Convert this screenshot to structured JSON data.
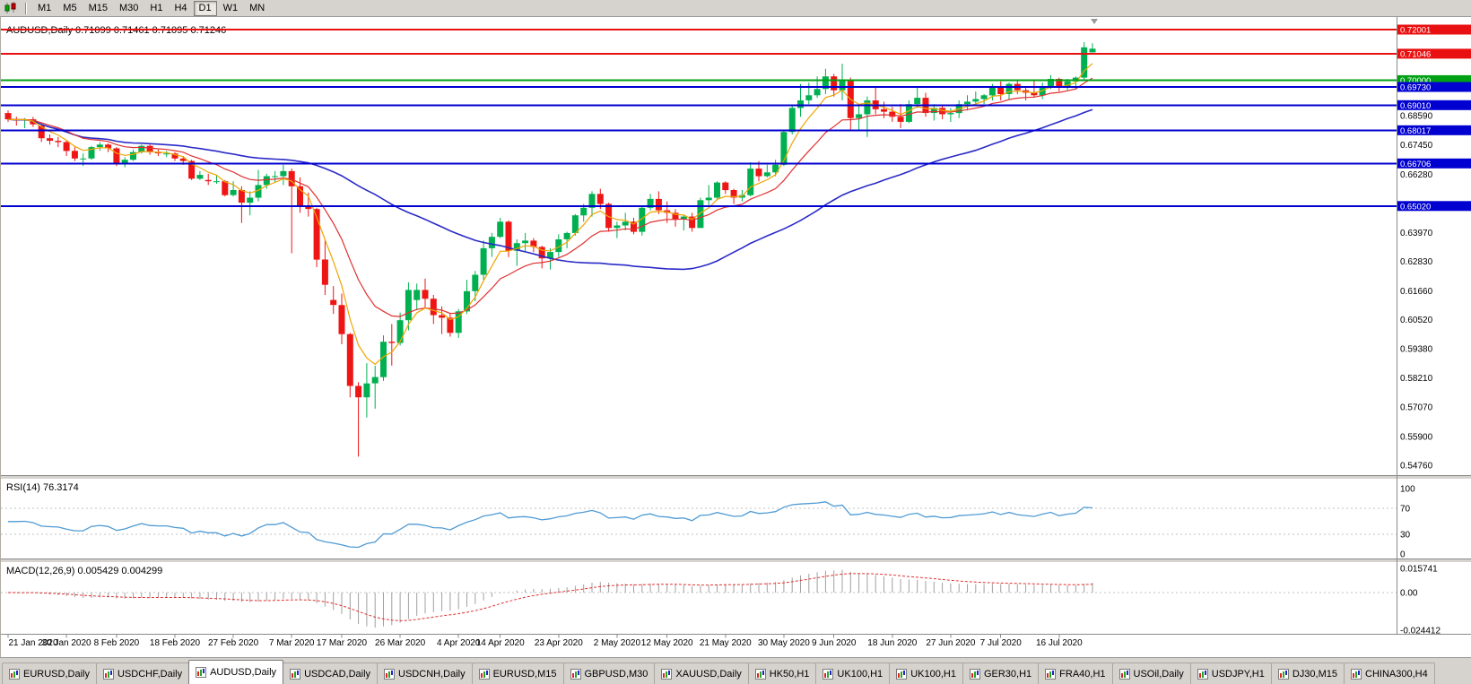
{
  "window": {
    "symbol_period": "AUDUSD,Daily",
    "ohlc_text": "0.71099 0.71461 0.71095 0.71246"
  },
  "toolbar": {
    "timeframes": [
      "M1",
      "M5",
      "M15",
      "M30",
      "H1",
      "H4",
      "D1",
      "W1",
      "MN"
    ],
    "active": "D1"
  },
  "tabs": {
    "active_index": 2,
    "items": [
      "EURUSD,Daily",
      "USDCHF,Daily",
      "AUDUSD,Daily",
      "USDCAD,Daily",
      "USDCNH,Daily",
      "EURUSD,M15",
      "GBPUSD,M30",
      "XAUUSD,Daily",
      "HK50,H1",
      "UK100,H1",
      "UK100,H1",
      "GER30,H1",
      "FRA40,H1",
      "USOil,Daily",
      "USDJPY,H1",
      "DJ30,M15",
      "CHINA300,H4"
    ]
  },
  "colors": {
    "candle_up": "#00B050",
    "candle_down": "#EE1515",
    "ma_fast": "#EEA500",
    "ma_medium": "#E03030",
    "ma_slow": "#2A2AC8",
    "hline_red": "#E81010",
    "hline_green": "#00A015",
    "hline_blue": "#0000D0",
    "rsi_line": "#4F9BD5",
    "macd_histogram": "#A0A0A0",
    "macd_signal": "#E03030"
  },
  "chart_data": {
    "type": "candlestick",
    "title": "AUDUSD,Daily",
    "ohlc_latest": {
      "open": 0.71099,
      "high": 0.71461,
      "low": 0.71095,
      "close": 0.71246
    },
    "ylim": [
      0.5476,
      0.72001
    ],
    "y_axis_labels": [
      "0.68590",
      "0.67450",
      "0.66280",
      "0.63970",
      "0.62830",
      "0.61660",
      "0.60520",
      "0.59380",
      "0.58210",
      "0.57070",
      "0.55900",
      "0.54760"
    ],
    "horizontal_lines": [
      {
        "value": 0.72001,
        "label": "0.72001",
        "color": "red"
      },
      {
        "value": 0.71046,
        "label": "0.71046",
        "color": "red"
      },
      {
        "value": 0.7,
        "label": "0.70000",
        "color": "green"
      },
      {
        "value": 0.6973,
        "label": "0.69730",
        "color": "blue"
      },
      {
        "value": 0.6901,
        "label": "0.69010",
        "color": "blue"
      },
      {
        "value": 0.68017,
        "label": "0.68017",
        "color": "blue"
      },
      {
        "value": 0.66706,
        "label": "0.66706",
        "color": "blue"
      },
      {
        "value": 0.6502,
        "label": "0.65020",
        "color": "blue"
      }
    ],
    "date_labels": [
      {
        "label": "21 Jan 2020",
        "i": 0
      },
      {
        "label": "30 Jan 2020",
        "i": 7
      },
      {
        "label": "8 Feb 2020",
        "i": 13
      },
      {
        "label": "18 Feb 2020",
        "i": 20
      },
      {
        "label": "27 Feb 2020",
        "i": 27
      },
      {
        "label": "7 Mar 2020",
        "i": 34
      },
      {
        "label": "17 Mar 2020",
        "i": 40
      },
      {
        "label": "26 Mar 2020",
        "i": 47
      },
      {
        "label": "4 Apr 2020",
        "i": 54
      },
      {
        "label": "14 Apr 2020",
        "i": 59
      },
      {
        "label": "23 Apr 2020",
        "i": 66
      },
      {
        "label": "2 May 2020",
        "i": 73
      },
      {
        "label": "12 May 2020",
        "i": 79
      },
      {
        "label": "21 May 2020",
        "i": 86
      },
      {
        "label": "30 May 2020",
        "i": 93
      },
      {
        "label": "9 Jun 2020",
        "i": 99
      },
      {
        "label": "18 Jun 2020",
        "i": 106
      },
      {
        "label": "27 Jun 2020",
        "i": 113
      },
      {
        "label": "7 Jul 2020",
        "i": 119
      },
      {
        "label": "16 Jul 2020",
        "i": 126
      }
    ],
    "moving_averages": [
      {
        "name": "fast",
        "type": "ema",
        "period": 5,
        "color_key": "ma_fast"
      },
      {
        "name": "medium",
        "type": "ema",
        "period": 13,
        "color_key": "ma_medium"
      },
      {
        "name": "slow",
        "type": "sma",
        "period": 45,
        "color_key": "ma_slow"
      }
    ],
    "indicators": {
      "rsi": {
        "label": "RSI(14)",
        "value_text": "76.3174",
        "period": 14,
        "axis_labels": [
          "100",
          "70",
          "30",
          "0"
        ],
        "axis_values": [
          100,
          70,
          30,
          0
        ],
        "level_lines": [
          70,
          30
        ]
      },
      "macd": {
        "label": "MACD(12,26,9)",
        "value_text": "0.005429 0.004299",
        "fast": 12,
        "slow": 26,
        "signal": 9,
        "axis_labels": [
          "0.015741",
          "0.00",
          "-0.024412"
        ],
        "axis_values": [
          0.015741,
          0,
          -0.024412
        ]
      }
    },
    "candles": [
      [
        0.687,
        0.688,
        0.6835,
        0.6845
      ],
      [
        0.6845,
        0.6855,
        0.682,
        0.684
      ],
      [
        0.684,
        0.685,
        0.681,
        0.6845
      ],
      [
        0.6845,
        0.6855,
        0.6815,
        0.6825
      ],
      [
        0.682,
        0.683,
        0.6755,
        0.677
      ],
      [
        0.677,
        0.6785,
        0.6745,
        0.676
      ],
      [
        0.676,
        0.6775,
        0.6735,
        0.6755
      ],
      [
        0.6755,
        0.676,
        0.67,
        0.672
      ],
      [
        0.672,
        0.6735,
        0.668,
        0.669
      ],
      [
        0.669,
        0.671,
        0.666,
        0.669
      ],
      [
        0.669,
        0.674,
        0.6685,
        0.6735
      ],
      [
        0.6735,
        0.6755,
        0.672,
        0.6745
      ],
      [
        0.6745,
        0.675,
        0.6715,
        0.673
      ],
      [
        0.673,
        0.6735,
        0.666,
        0.667
      ],
      [
        0.667,
        0.6695,
        0.6655,
        0.6685
      ],
      [
        0.6685,
        0.6725,
        0.668,
        0.6715
      ],
      [
        0.6715,
        0.6745,
        0.671,
        0.674
      ],
      [
        0.674,
        0.6745,
        0.6705,
        0.6715
      ],
      [
        0.6715,
        0.6725,
        0.67,
        0.671
      ],
      [
        0.671,
        0.672,
        0.6695,
        0.671
      ],
      [
        0.671,
        0.6715,
        0.668,
        0.669
      ],
      [
        0.669,
        0.67,
        0.6665,
        0.668
      ],
      [
        0.668,
        0.6685,
        0.6605,
        0.661
      ],
      [
        0.661,
        0.664,
        0.6605,
        0.6625
      ],
      [
        0.6605,
        0.663,
        0.6585,
        0.66
      ],
      [
        0.66,
        0.6625,
        0.659,
        0.66
      ],
      [
        0.66,
        0.6605,
        0.654,
        0.6545
      ],
      [
        0.6545,
        0.66,
        0.654,
        0.6565
      ],
      [
        0.6565,
        0.658,
        0.6435,
        0.6515
      ],
      [
        0.6515,
        0.656,
        0.6465,
        0.6535
      ],
      [
        0.6535,
        0.6645,
        0.652,
        0.6585
      ],
      [
        0.6585,
        0.663,
        0.657,
        0.662
      ],
      [
        0.662,
        0.664,
        0.6595,
        0.662
      ],
      [
        0.662,
        0.6665,
        0.6585,
        0.664
      ],
      [
        0.664,
        0.665,
        0.6315,
        0.658
      ],
      [
        0.658,
        0.6615,
        0.6475,
        0.65
      ],
      [
        0.65,
        0.6555,
        0.646,
        0.649
      ],
      [
        0.649,
        0.6495,
        0.626,
        0.629
      ],
      [
        0.629,
        0.637,
        0.615,
        0.619
      ],
      [
        0.613,
        0.6185,
        0.6075,
        0.611
      ],
      [
        0.611,
        0.6155,
        0.5955,
        0.5995
      ],
      [
        0.5995,
        0.6,
        0.5745,
        0.579
      ],
      [
        0.579,
        0.5805,
        0.551,
        0.5745
      ],
      [
        0.5745,
        0.588,
        0.5665,
        0.58
      ],
      [
        0.58,
        0.587,
        0.57,
        0.5825
      ],
      [
        0.5825,
        0.599,
        0.581,
        0.5965
      ],
      [
        0.5965,
        0.6035,
        0.587,
        0.596
      ],
      [
        0.596,
        0.608,
        0.595,
        0.605
      ],
      [
        0.605,
        0.62,
        0.601,
        0.617
      ],
      [
        0.613,
        0.6195,
        0.609,
        0.617
      ],
      [
        0.617,
        0.6215,
        0.61,
        0.6135
      ],
      [
        0.6135,
        0.615,
        0.6035,
        0.607
      ],
      [
        0.607,
        0.6105,
        0.5995,
        0.606
      ],
      [
        0.606,
        0.6075,
        0.5985,
        0.6
      ],
      [
        0.6,
        0.6095,
        0.598,
        0.6085
      ],
      [
        0.6085,
        0.621,
        0.6075,
        0.6165
      ],
      [
        0.6165,
        0.6245,
        0.6125,
        0.623
      ],
      [
        0.623,
        0.6365,
        0.621,
        0.6335
      ],
      [
        0.6335,
        0.6395,
        0.63,
        0.638
      ],
      [
        0.638,
        0.6455,
        0.6375,
        0.644
      ],
      [
        0.644,
        0.6445,
        0.63,
        0.6325
      ],
      [
        0.6325,
        0.637,
        0.6265,
        0.6355
      ],
      [
        0.6355,
        0.6395,
        0.632,
        0.6365
      ],
      [
        0.6365,
        0.6375,
        0.632,
        0.634
      ],
      [
        0.634,
        0.6345,
        0.6255,
        0.6295
      ],
      [
        0.6295,
        0.6335,
        0.625,
        0.632
      ],
      [
        0.632,
        0.639,
        0.63,
        0.637
      ],
      [
        0.637,
        0.64,
        0.6335,
        0.6395
      ],
      [
        0.6395,
        0.647,
        0.6385,
        0.6465
      ],
      [
        0.6465,
        0.651,
        0.644,
        0.6495
      ],
      [
        0.6495,
        0.656,
        0.646,
        0.655
      ],
      [
        0.655,
        0.657,
        0.649,
        0.651
      ],
      [
        0.651,
        0.6515,
        0.64,
        0.6415
      ],
      [
        0.6415,
        0.644,
        0.6375,
        0.6425
      ],
      [
        0.6425,
        0.6475,
        0.6405,
        0.644
      ],
      [
        0.644,
        0.6455,
        0.639,
        0.64
      ],
      [
        0.64,
        0.65,
        0.6385,
        0.6495
      ],
      [
        0.6495,
        0.655,
        0.6485,
        0.653
      ],
      [
        0.653,
        0.656,
        0.647,
        0.6485
      ],
      [
        0.6485,
        0.652,
        0.6435,
        0.6475
      ],
      [
        0.6475,
        0.649,
        0.642,
        0.645
      ],
      [
        0.645,
        0.6465,
        0.6405,
        0.646
      ],
      [
        0.646,
        0.6475,
        0.64,
        0.6415
      ],
      [
        0.6415,
        0.6535,
        0.6415,
        0.6525
      ],
      [
        0.6525,
        0.6585,
        0.6505,
        0.6535
      ],
      [
        0.6535,
        0.66,
        0.6525,
        0.6595
      ],
      [
        0.6595,
        0.66,
        0.655,
        0.6565
      ],
      [
        0.6565,
        0.657,
        0.651,
        0.6535
      ],
      [
        0.6535,
        0.6565,
        0.652,
        0.6545
      ],
      [
        0.6545,
        0.6675,
        0.654,
        0.665
      ],
      [
        0.665,
        0.668,
        0.66,
        0.662
      ],
      [
        0.662,
        0.6665,
        0.6615,
        0.6635
      ],
      [
        0.6635,
        0.6685,
        0.662,
        0.6665
      ],
      [
        0.6665,
        0.6805,
        0.666,
        0.6795
      ],
      [
        0.6795,
        0.69,
        0.6785,
        0.689
      ],
      [
        0.689,
        0.6985,
        0.6855,
        0.692
      ],
      [
        0.692,
        0.699,
        0.6905,
        0.694
      ],
      [
        0.694,
        0.7015,
        0.693,
        0.6965
      ],
      [
        0.6965,
        0.7045,
        0.6945,
        0.7015
      ],
      [
        0.7015,
        0.7025,
        0.6935,
        0.696
      ],
      [
        0.696,
        0.7065,
        0.692,
        0.7
      ],
      [
        0.7,
        0.701,
        0.68,
        0.685
      ],
      [
        0.685,
        0.6905,
        0.68,
        0.6865
      ],
      [
        0.6865,
        0.6935,
        0.6775,
        0.692
      ],
      [
        0.692,
        0.6975,
        0.6865,
        0.6885
      ],
      [
        0.6885,
        0.6915,
        0.685,
        0.6875
      ],
      [
        0.6875,
        0.6895,
        0.6835,
        0.6855
      ],
      [
        0.6855,
        0.6905,
        0.681,
        0.6835
      ],
      [
        0.6835,
        0.692,
        0.683,
        0.6905
      ],
      [
        0.6905,
        0.6975,
        0.689,
        0.693
      ],
      [
        0.693,
        0.695,
        0.6855,
        0.687
      ],
      [
        0.687,
        0.6905,
        0.684,
        0.689
      ],
      [
        0.689,
        0.69,
        0.6845,
        0.6865
      ],
      [
        0.6865,
        0.689,
        0.6835,
        0.687
      ],
      [
        0.687,
        0.692,
        0.685,
        0.6905
      ],
      [
        0.6905,
        0.694,
        0.688,
        0.6915
      ],
      [
        0.6915,
        0.6955,
        0.69,
        0.6925
      ],
      [
        0.6925,
        0.6945,
        0.6905,
        0.694
      ],
      [
        0.694,
        0.6985,
        0.692,
        0.6975
      ],
      [
        0.6975,
        0.6995,
        0.692,
        0.6945
      ],
      [
        0.6945,
        0.699,
        0.6925,
        0.6985
      ],
      [
        0.6985,
        0.7,
        0.6945,
        0.696
      ],
      [
        0.696,
        0.697,
        0.692,
        0.695
      ],
      [
        0.695,
        0.7,
        0.693,
        0.694
      ],
      [
        0.694,
        0.699,
        0.6925,
        0.6975
      ],
      [
        0.6975,
        0.702,
        0.6965,
        0.7005
      ],
      [
        0.7005,
        0.701,
        0.6955,
        0.697
      ],
      [
        0.697,
        0.7005,
        0.696,
        0.6995
      ],
      [
        0.6995,
        0.7015,
        0.6965,
        0.701
      ],
      [
        0.701,
        0.715,
        0.7,
        0.713
      ],
      [
        0.71099,
        0.71461,
        0.71095,
        0.71246
      ]
    ]
  }
}
